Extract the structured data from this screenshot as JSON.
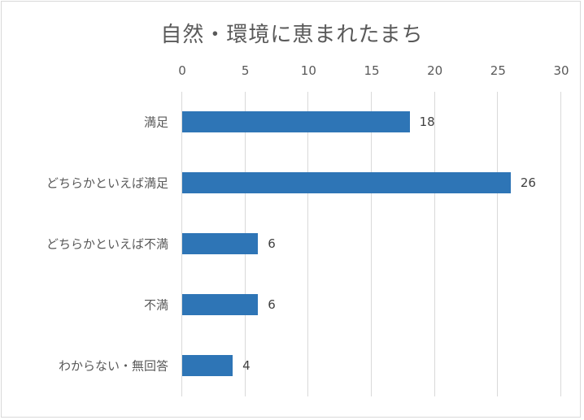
{
  "chart_data": {
    "type": "bar",
    "orientation": "horizontal",
    "title": "自然・環境に恵まれたまち",
    "categories": [
      "満足",
      "どちらかといえば満足",
      "どちらかといえば不満",
      "不満",
      "わからない・無回答"
    ],
    "values": [
      18,
      26,
      6,
      6,
      4
    ],
    "xlabel": "",
    "ylabel": "",
    "xlim": [
      0,
      30
    ],
    "xticks": [
      "0",
      "5",
      "10",
      "15",
      "20",
      "25",
      "30"
    ],
    "grid": true,
    "legend": null,
    "bar_color": "#2e75b6",
    "data_labels": [
      "18",
      "26",
      "6",
      "6",
      "4"
    ]
  }
}
